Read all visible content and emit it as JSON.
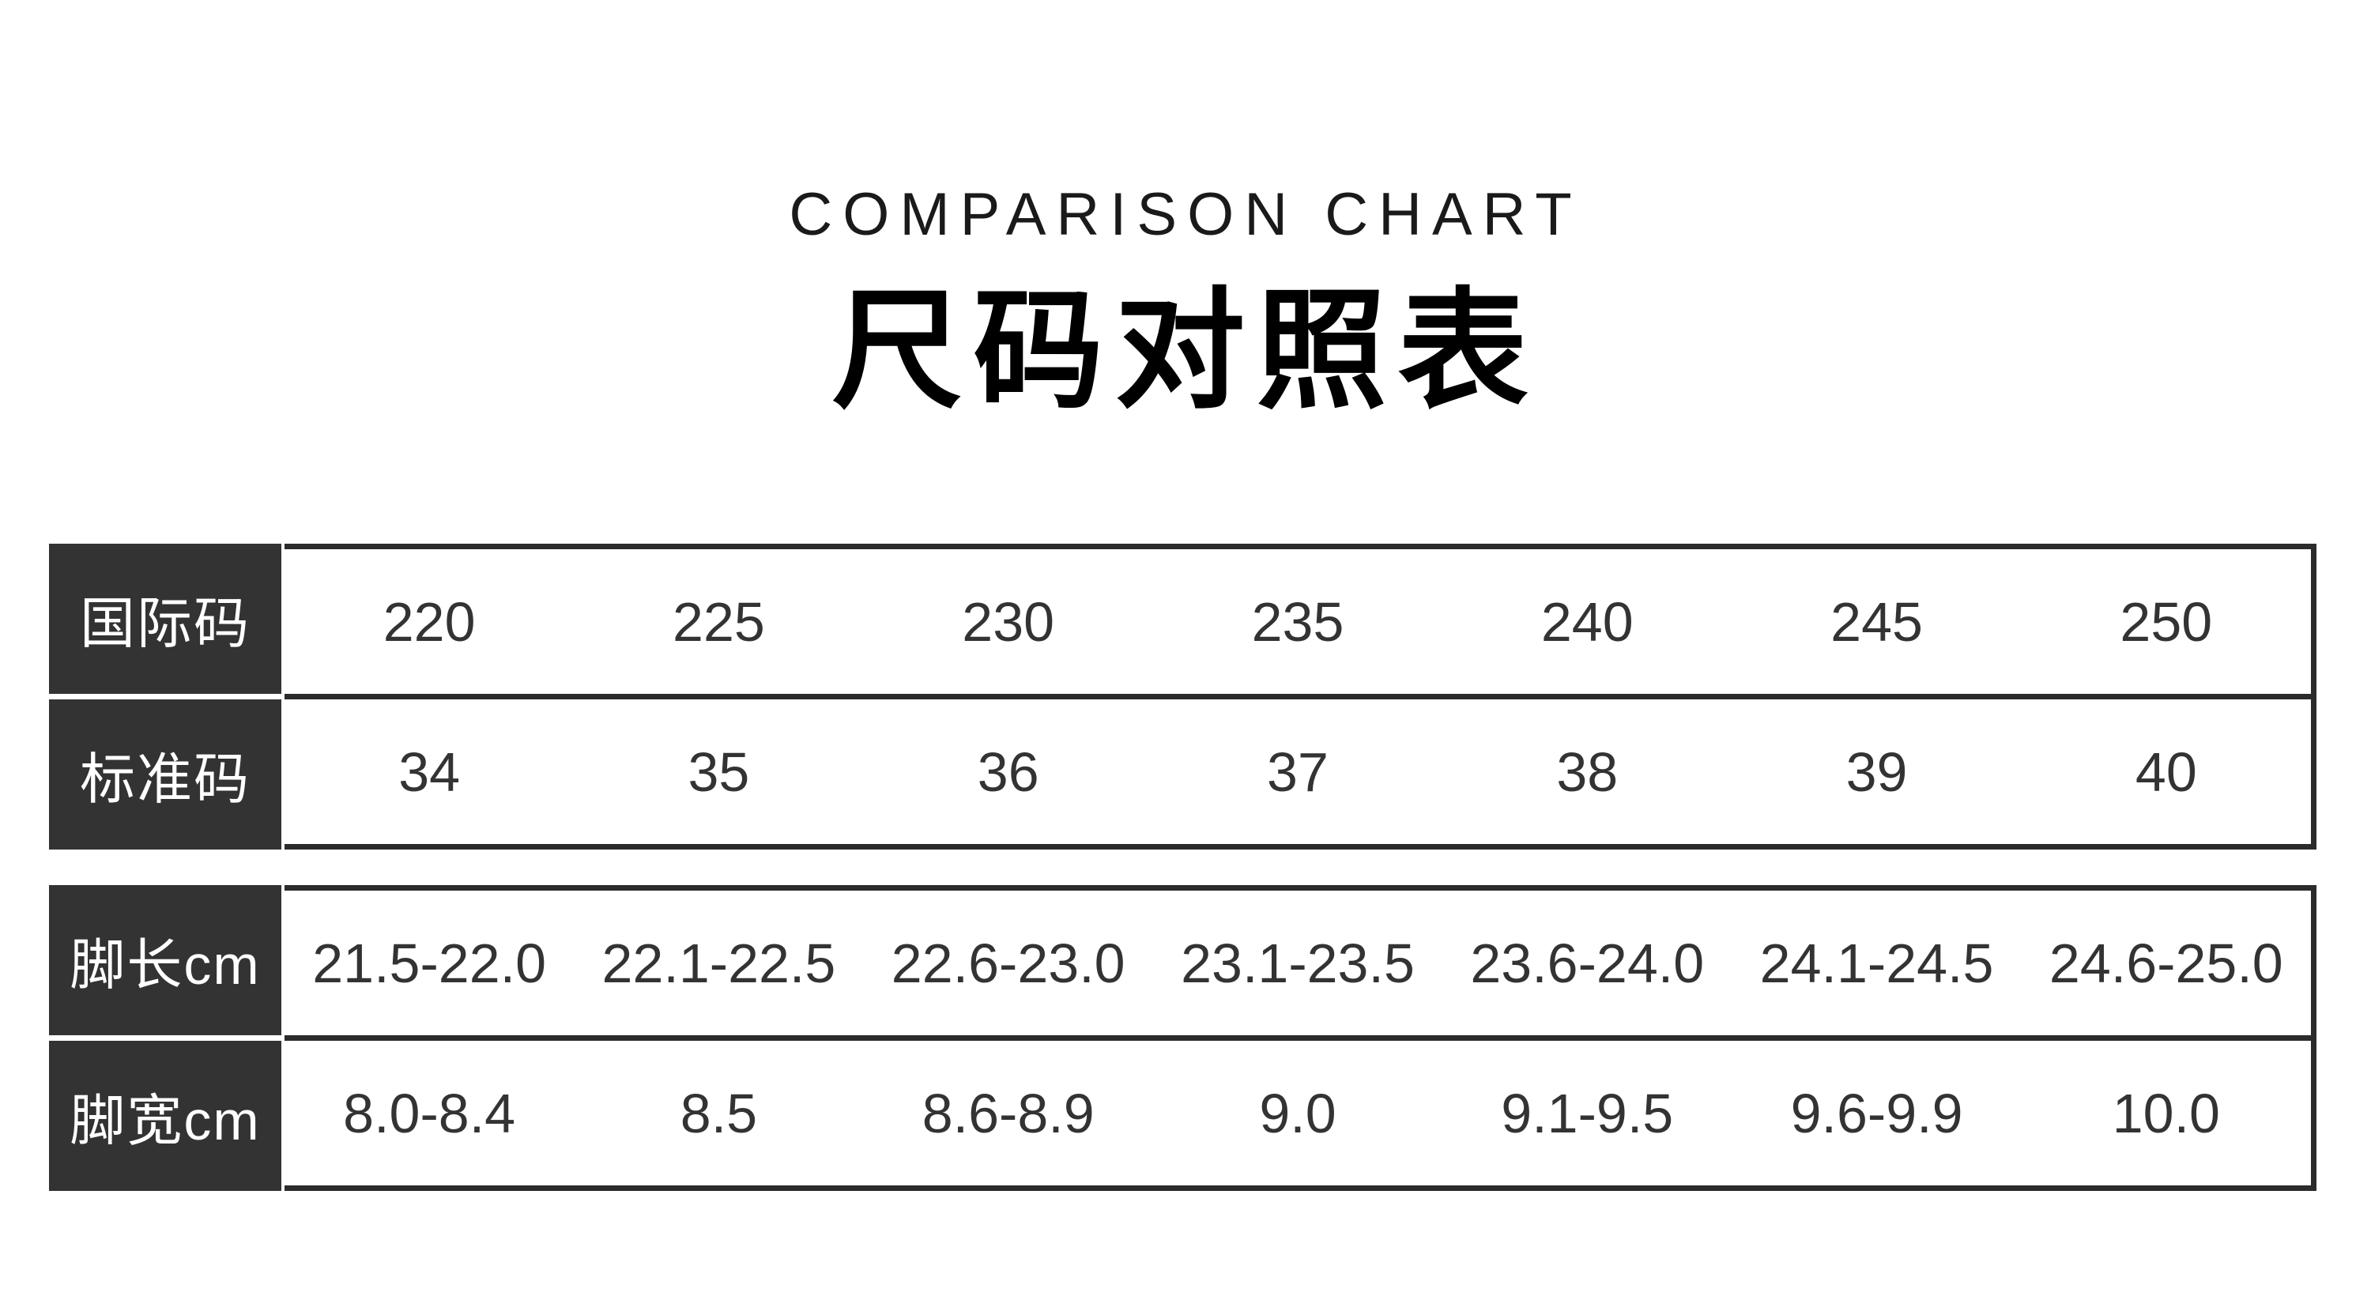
{
  "header": {
    "title_en": "COMPARISON CHART",
    "title_cn": "尺码对照表"
  },
  "colors": {
    "background": "#ffffff",
    "header_cell_bg": "#333333",
    "header_cell_text": "#ffffff",
    "table_border": "#2b2b2b",
    "data_text": "#333333",
    "title_text": "#000000"
  },
  "chart_data": {
    "type": "table",
    "title": "尺码对照表",
    "subtitle": "COMPARISON CHART",
    "rows": [
      {
        "label": "国际码",
        "values": [
          "220",
          "225",
          "230",
          "235",
          "240",
          "245",
          "250"
        ]
      },
      {
        "label": "标准码",
        "values": [
          "34",
          "35",
          "36",
          "37",
          "38",
          "39",
          "40"
        ]
      },
      {
        "label": "脚长cm",
        "values": [
          "21.5-22.0",
          "22.1-22.5",
          "22.6-23.0",
          "23.1-23.5",
          "23.6-24.0",
          "24.1-24.5",
          "24.6-25.0"
        ]
      },
      {
        "label": "脚宽cm",
        "values": [
          "8.0-8.4",
          "8.5",
          "8.6-8.9",
          "9.0",
          "9.1-9.5",
          "9.6-9.9",
          "10.0"
        ]
      }
    ]
  }
}
